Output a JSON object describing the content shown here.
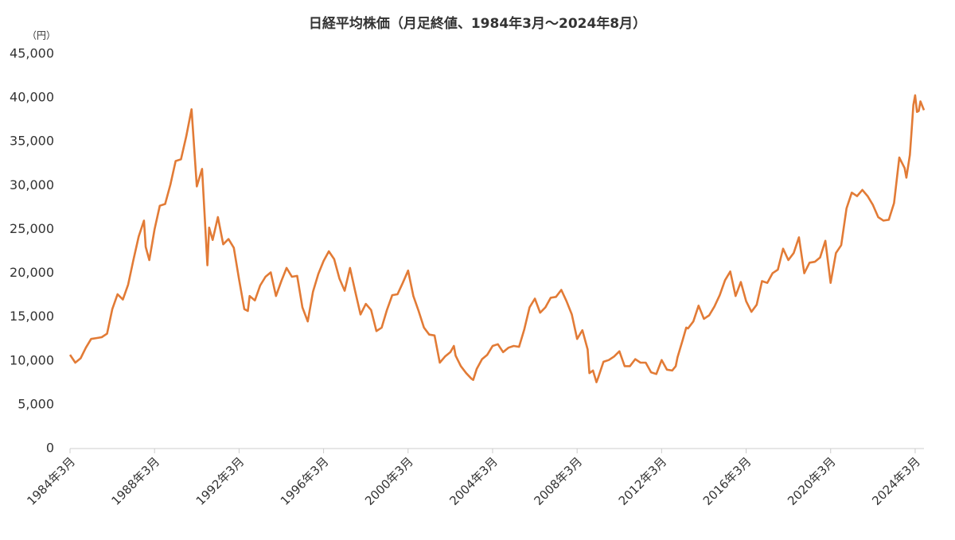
{
  "chart_data": {
    "type": "line",
    "title": "日経平均株価（月足終値、1984年3月～2024年8月）",
    "y_unit": "（円）",
    "grid": false,
    "x": [
      "1984-03",
      "1984-06",
      "1984-09",
      "1984-12",
      "1985-03",
      "1985-06",
      "1985-09",
      "1985-12",
      "1986-03",
      "1986-06",
      "1986-09",
      "1986-12",
      "1987-03",
      "1987-06",
      "1987-09",
      "1987-10",
      "1987-12",
      "1988-03",
      "1988-06",
      "1988-09",
      "1988-12",
      "1989-03",
      "1989-06",
      "1989-09",
      "1989-12",
      "1990-03",
      "1990-06",
      "1990-09",
      "1990-10",
      "1990-12",
      "1991-03",
      "1991-06",
      "1991-09",
      "1991-12",
      "1992-03",
      "1992-06",
      "1992-08",
      "1992-09",
      "1992-12",
      "1993-03",
      "1993-06",
      "1993-09",
      "1993-12",
      "1994-03",
      "1994-06",
      "1994-09",
      "1994-12",
      "1995-03",
      "1995-06",
      "1995-09",
      "1995-12",
      "1996-03",
      "1996-06",
      "1996-09",
      "1996-12",
      "1997-03",
      "1997-06",
      "1997-09",
      "1997-12",
      "1998-03",
      "1998-06",
      "1998-09",
      "1998-12",
      "1999-03",
      "1999-06",
      "1999-09",
      "1999-12",
      "2000-03",
      "2000-06",
      "2000-09",
      "2000-12",
      "2001-03",
      "2001-06",
      "2001-09",
      "2001-12",
      "2002-03",
      "2002-05",
      "2002-06",
      "2002-09",
      "2002-12",
      "2003-03",
      "2003-04",
      "2003-06",
      "2003-09",
      "2003-12",
      "2004-03",
      "2004-06",
      "2004-09",
      "2004-12",
      "2005-03",
      "2005-06",
      "2005-09",
      "2005-12",
      "2006-03",
      "2006-06",
      "2006-09",
      "2006-12",
      "2007-03",
      "2007-06",
      "2007-09",
      "2007-12",
      "2008-03",
      "2008-06",
      "2008-09",
      "2008-10",
      "2008-12",
      "2009-02",
      "2009-03",
      "2009-06",
      "2009-09",
      "2009-12",
      "2010-03",
      "2010-06",
      "2010-09",
      "2010-12",
      "2011-03",
      "2011-06",
      "2011-09",
      "2011-12",
      "2012-03",
      "2012-06",
      "2012-09",
      "2012-11",
      "2012-12",
      "2013-03",
      "2013-05",
      "2013-06",
      "2013-09",
      "2013-12",
      "2014-03",
      "2014-06",
      "2014-09",
      "2014-12",
      "2015-03",
      "2015-06",
      "2015-09",
      "2015-12",
      "2016-03",
      "2016-06",
      "2016-09",
      "2016-12",
      "2017-03",
      "2017-06",
      "2017-09",
      "2017-12",
      "2018-03",
      "2018-06",
      "2018-09",
      "2018-12",
      "2019-03",
      "2019-06",
      "2019-09",
      "2019-12",
      "2020-03",
      "2020-06",
      "2020-09",
      "2020-12",
      "2021-03",
      "2021-06",
      "2021-09",
      "2021-12",
      "2022-03",
      "2022-06",
      "2022-09",
      "2022-12",
      "2023-03",
      "2023-06",
      "2023-09",
      "2023-10",
      "2023-12",
      "2024-01",
      "2024-02",
      "2024-03",
      "2024-04",
      "2024-05",
      "2024-06",
      "2024-07",
      "2024-08"
    ],
    "series": [
      {
        "name": "日経平均株価",
        "color": "#e27b36",
        "values": [
          10700,
          9800,
          10300,
          11500,
          12500,
          12600,
          12700,
          13100,
          15900,
          17600,
          17000,
          18700,
          21500,
          24200,
          26000,
          23000,
          21500,
          25000,
          27700,
          27900,
          30100,
          32800,
          33000,
          35600,
          38700,
          29900,
          31900,
          20900,
          25200,
          23800,
          26400,
          23300,
          23900,
          22900,
          19300,
          15900,
          15700,
          17400,
          16900,
          18600,
          19600,
          20100,
          17400,
          19100,
          20600,
          19600,
          19700,
          16100,
          14500,
          17900,
          19900,
          21400,
          22500,
          21600,
          19400,
          18000,
          20600,
          17900,
          15300,
          16500,
          15800,
          13400,
          13800,
          15800,
          17500,
          17600,
          18900,
          20300,
          17400,
          15700,
          13800,
          13000,
          12900,
          9800,
          10500,
          11000,
          11700,
          10600,
          9400,
          8600,
          7970,
          7830,
          9100,
          10200,
          10700,
          11700,
          11900,
          11000,
          11500,
          11700,
          11600,
          13600,
          16100,
          17100,
          15500,
          16100,
          17200,
          17300,
          18100,
          16800,
          15300,
          12500,
          13500,
          11300,
          8600,
          8900,
          7570,
          8100,
          9900,
          10100,
          10500,
          11100,
          9400,
          9400,
          10200,
          9800,
          9800,
          8700,
          8500,
          10100,
          9000,
          8900,
          9400,
          10400,
          12400,
          13800,
          13700,
          14500,
          16300,
          14800,
          15200,
          16200,
          17500,
          19200,
          20200,
          17400,
          19000,
          16800,
          15600,
          16400,
          19100,
          18900,
          20000,
          20400,
          22800,
          21500,
          22300,
          24100,
          20000,
          21200,
          21300,
          21800,
          23700,
          18900,
          22300,
          23200,
          27400,
          29200,
          28800,
          29500,
          28800,
          27800,
          26400,
          26000,
          26100,
          28000,
          33200,
          32000,
          30900,
          33500,
          36300,
          39200,
          40300,
          38400,
          38500,
          39600,
          39100,
          38600
        ]
      }
    ],
    "xlim": [
      "1984-03",
      "2024-08"
    ],
    "xticks": [
      {
        "value": "1984-03",
        "label": "1984年3月"
      },
      {
        "value": "1988-03",
        "label": "1988年3月"
      },
      {
        "value": "1992-03",
        "label": "1992年3月"
      },
      {
        "value": "1996-03",
        "label": "1996年3月"
      },
      {
        "value": "2000-03",
        "label": "2000年3月"
      },
      {
        "value": "2004-03",
        "label": "2004年3月"
      },
      {
        "value": "2008-03",
        "label": "2008年3月"
      },
      {
        "value": "2012-03",
        "label": "2012年3月"
      },
      {
        "value": "2016-03",
        "label": "2016年3月"
      },
      {
        "value": "2020-03",
        "label": "2020年3月"
      },
      {
        "value": "2024-03",
        "label": "2024年3月"
      }
    ],
    "ylim": [
      0,
      45000
    ],
    "yticks": [
      0,
      {
        "value": 5000,
        "label": "5,000"
      },
      {
        "value": 10000,
        "label": "10,000"
      },
      {
        "value": 15000,
        "label": "15,000"
      },
      {
        "value": 20000,
        "label": "20,000"
      },
      {
        "value": 25000,
        "label": "25,000"
      },
      {
        "value": 30000,
        "label": "30,000"
      },
      {
        "value": 35000,
        "label": "35,000"
      },
      {
        "value": 40000,
        "label": "40,000"
      },
      {
        "value": 45000,
        "label": "45,000"
      }
    ]
  }
}
